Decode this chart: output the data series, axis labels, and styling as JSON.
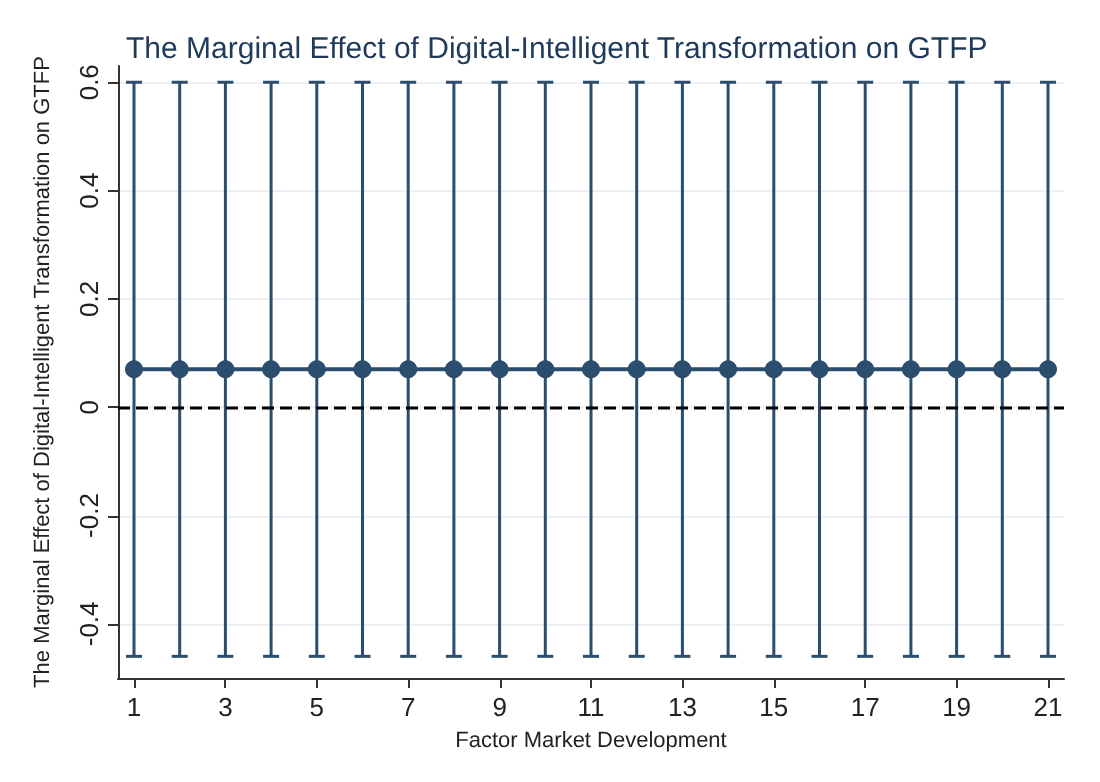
{
  "chart_data": {
    "type": "line",
    "title": "The Marginal Effect of Digital-Intelligent Transformation on GTFP",
    "xlabel": "Factor Market Development",
    "ylabel": "The Marginal Effect of Digital-Intelligent Transformation on GTFP",
    "x": [
      1,
      2,
      3,
      4,
      5,
      6,
      7,
      8,
      9,
      10,
      11,
      12,
      13,
      14,
      15,
      16,
      17,
      18,
      19,
      20,
      21
    ],
    "series": [
      {
        "color": "#2b4d6e",
        "values": [
          0.07,
          0.07,
          0.07,
          0.07,
          0.07,
          0.07,
          0.07,
          0.07,
          0.07,
          0.07,
          0.07,
          0.07,
          0.07,
          0.07,
          0.07,
          0.07,
          0.07,
          0.07,
          0.07,
          0.07,
          0.07
        ],
        "errors": [
          [
            -0.46,
            0.6
          ],
          [
            -0.46,
            0.6
          ],
          [
            -0.46,
            0.6
          ],
          [
            -0.46,
            0.6
          ],
          [
            -0.46,
            0.6
          ],
          [
            -0.46,
            0.6
          ],
          [
            -0.46,
            0.6
          ],
          [
            -0.46,
            0.6
          ],
          [
            -0.46,
            0.6
          ],
          [
            -0.46,
            0.6
          ],
          [
            -0.46,
            0.6
          ],
          [
            -0.46,
            0.6
          ],
          [
            -0.46,
            0.6
          ],
          [
            -0.46,
            0.6
          ],
          [
            -0.46,
            0.6
          ],
          [
            -0.46,
            0.6
          ],
          [
            -0.46,
            0.6
          ],
          [
            -0.46,
            0.6
          ],
          [
            -0.46,
            0.6
          ],
          [
            -0.46,
            0.6
          ],
          [
            -0.46,
            0.6
          ]
        ]
      }
    ],
    "xlim": [
      0.65,
      21.35
    ],
    "xticks": [
      1,
      3,
      5,
      7,
      9,
      11,
      13,
      15,
      17,
      19,
      21
    ],
    "ylim": [
      -0.5,
      0.63
    ],
    "yticks": [
      -0.4,
      -0.2,
      0,
      0.2,
      0.4,
      0.6
    ],
    "grid": "y",
    "marker": "circle",
    "line_style": "solid",
    "ref_lines": [
      {
        "axis": "y",
        "value": 0,
        "color": "#000000",
        "line_style": "dashed"
      }
    ]
  }
}
